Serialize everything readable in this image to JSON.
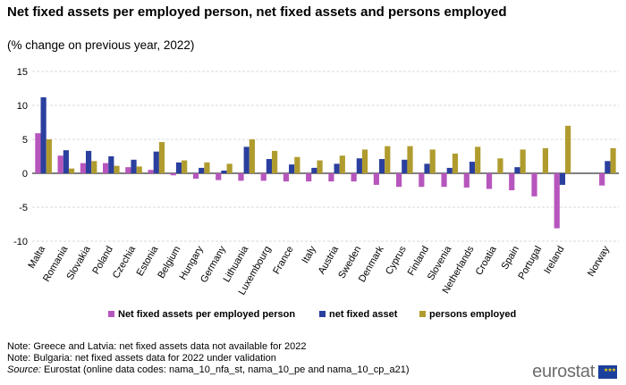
{
  "header": {
    "title": "Net fixed assets per employed person, net fixed assets and persons employed",
    "subtitle": "(% change on previous year, 2022)"
  },
  "chart_data": {
    "type": "bar",
    "title": "Net fixed assets per employed person, net fixed assets and persons employed",
    "subtitle": "(% change on previous year, 2022)",
    "xlabel": "",
    "ylabel": "",
    "ylim": [
      -10,
      15
    ],
    "yticks": [
      15,
      10,
      5,
      0,
      -5,
      -10
    ],
    "grid": "horizontal",
    "legend_position": "bottom",
    "categories": [
      "Malta",
      "Romania",
      "Slovakia",
      "Poland",
      "Czechia",
      "Estonia",
      "Belgium",
      "Hungary",
      "Germany",
      "Lithuania",
      "Luxembourg",
      "France",
      "Italy",
      "Austria",
      "Sweden",
      "Denmark",
      "Cyprus",
      "Finland",
      "Slovenia",
      "Netherlands",
      "Croatia",
      "Spain",
      "Portugal",
      "Ireland",
      "",
      "Norway"
    ],
    "series": [
      {
        "name": "Net fixed assets per employed person",
        "color": "#b656bd",
        "values": [
          5.9,
          2.6,
          1.5,
          1.5,
          0.9,
          0.5,
          -0.3,
          -0.8,
          -1.0,
          -1.1,
          -1.1,
          -1.2,
          -1.2,
          -1.2,
          -1.2,
          -1.7,
          -2.0,
          -2.0,
          -2.0,
          -2.1,
          -2.3,
          -2.5,
          -3.4,
          -8.1,
          null,
          -1.8
        ]
      },
      {
        "name": "net fixed asset",
        "color": "#2a3f9e",
        "values": [
          11.2,
          3.4,
          3.3,
          2.5,
          2.0,
          3.2,
          1.6,
          0.8,
          0.4,
          3.9,
          2.1,
          1.3,
          0.8,
          1.4,
          2.2,
          2.1,
          2.0,
          1.4,
          0.8,
          1.7,
          null,
          0.9,
          null,
          -1.7,
          null,
          1.8
        ]
      },
      {
        "name": "persons employed",
        "color": "#b09c2e",
        "values": [
          5.0,
          0.7,
          1.8,
          1.1,
          1.0,
          4.6,
          1.9,
          1.6,
          1.4,
          5.0,
          3.3,
          2.4,
          1.9,
          2.6,
          3.5,
          4.0,
          4.0,
          3.5,
          2.9,
          3.9,
          2.2,
          3.5,
          3.7,
          7.0,
          null,
          3.7
        ]
      }
    ]
  },
  "notes": {
    "note1": "Note: Greece and Latvia:  net fixed assets data not available for 2022",
    "note2": "Note: Bulgaria: net fixed assets data for 2022 under validation",
    "source_label": "Source:",
    "source_text": " Eurostat (online data codes: nama_10_nfa_st, nama_10_pe and nama_10_cp_a21)"
  },
  "logo": {
    "text": "eurostat",
    "flag_stars": "★★★"
  }
}
